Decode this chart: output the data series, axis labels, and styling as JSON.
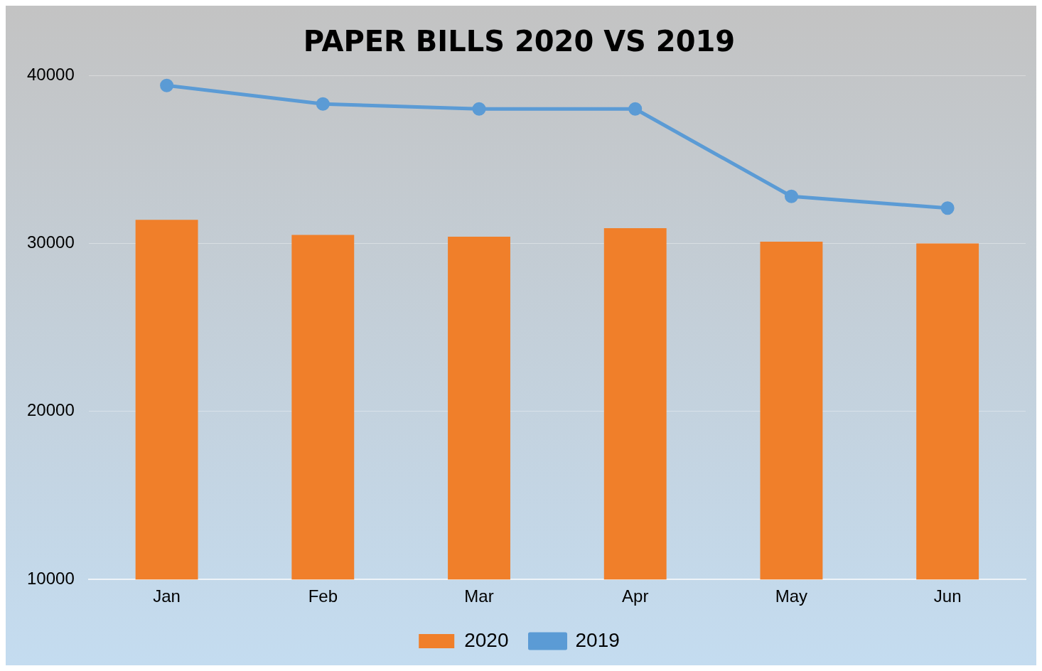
{
  "chart_data": {
    "type": "bar",
    "title": "PAPER BILLS 2020 VS 2019",
    "categories": [
      "Jan",
      "Feb",
      "Mar",
      "Apr",
      "May",
      "Jun"
    ],
    "series": [
      {
        "name": "2020",
        "color": "#f07f2a",
        "values": [
          31400,
          30500,
          30400,
          30900,
          30100,
          30000
        ]
      },
      {
        "name": "2019",
        "type": "line",
        "color": "#5b9bd5",
        "values": [
          39400,
          38300,
          38000,
          38000,
          32800,
          32100
        ]
      }
    ],
    "ylim": [
      10000,
      40000
    ],
    "yticks": [
      10000,
      20000,
      30000,
      40000
    ],
    "grid": "y",
    "legend": "bottom",
    "marker": "circle",
    "line_style": "solid"
  }
}
